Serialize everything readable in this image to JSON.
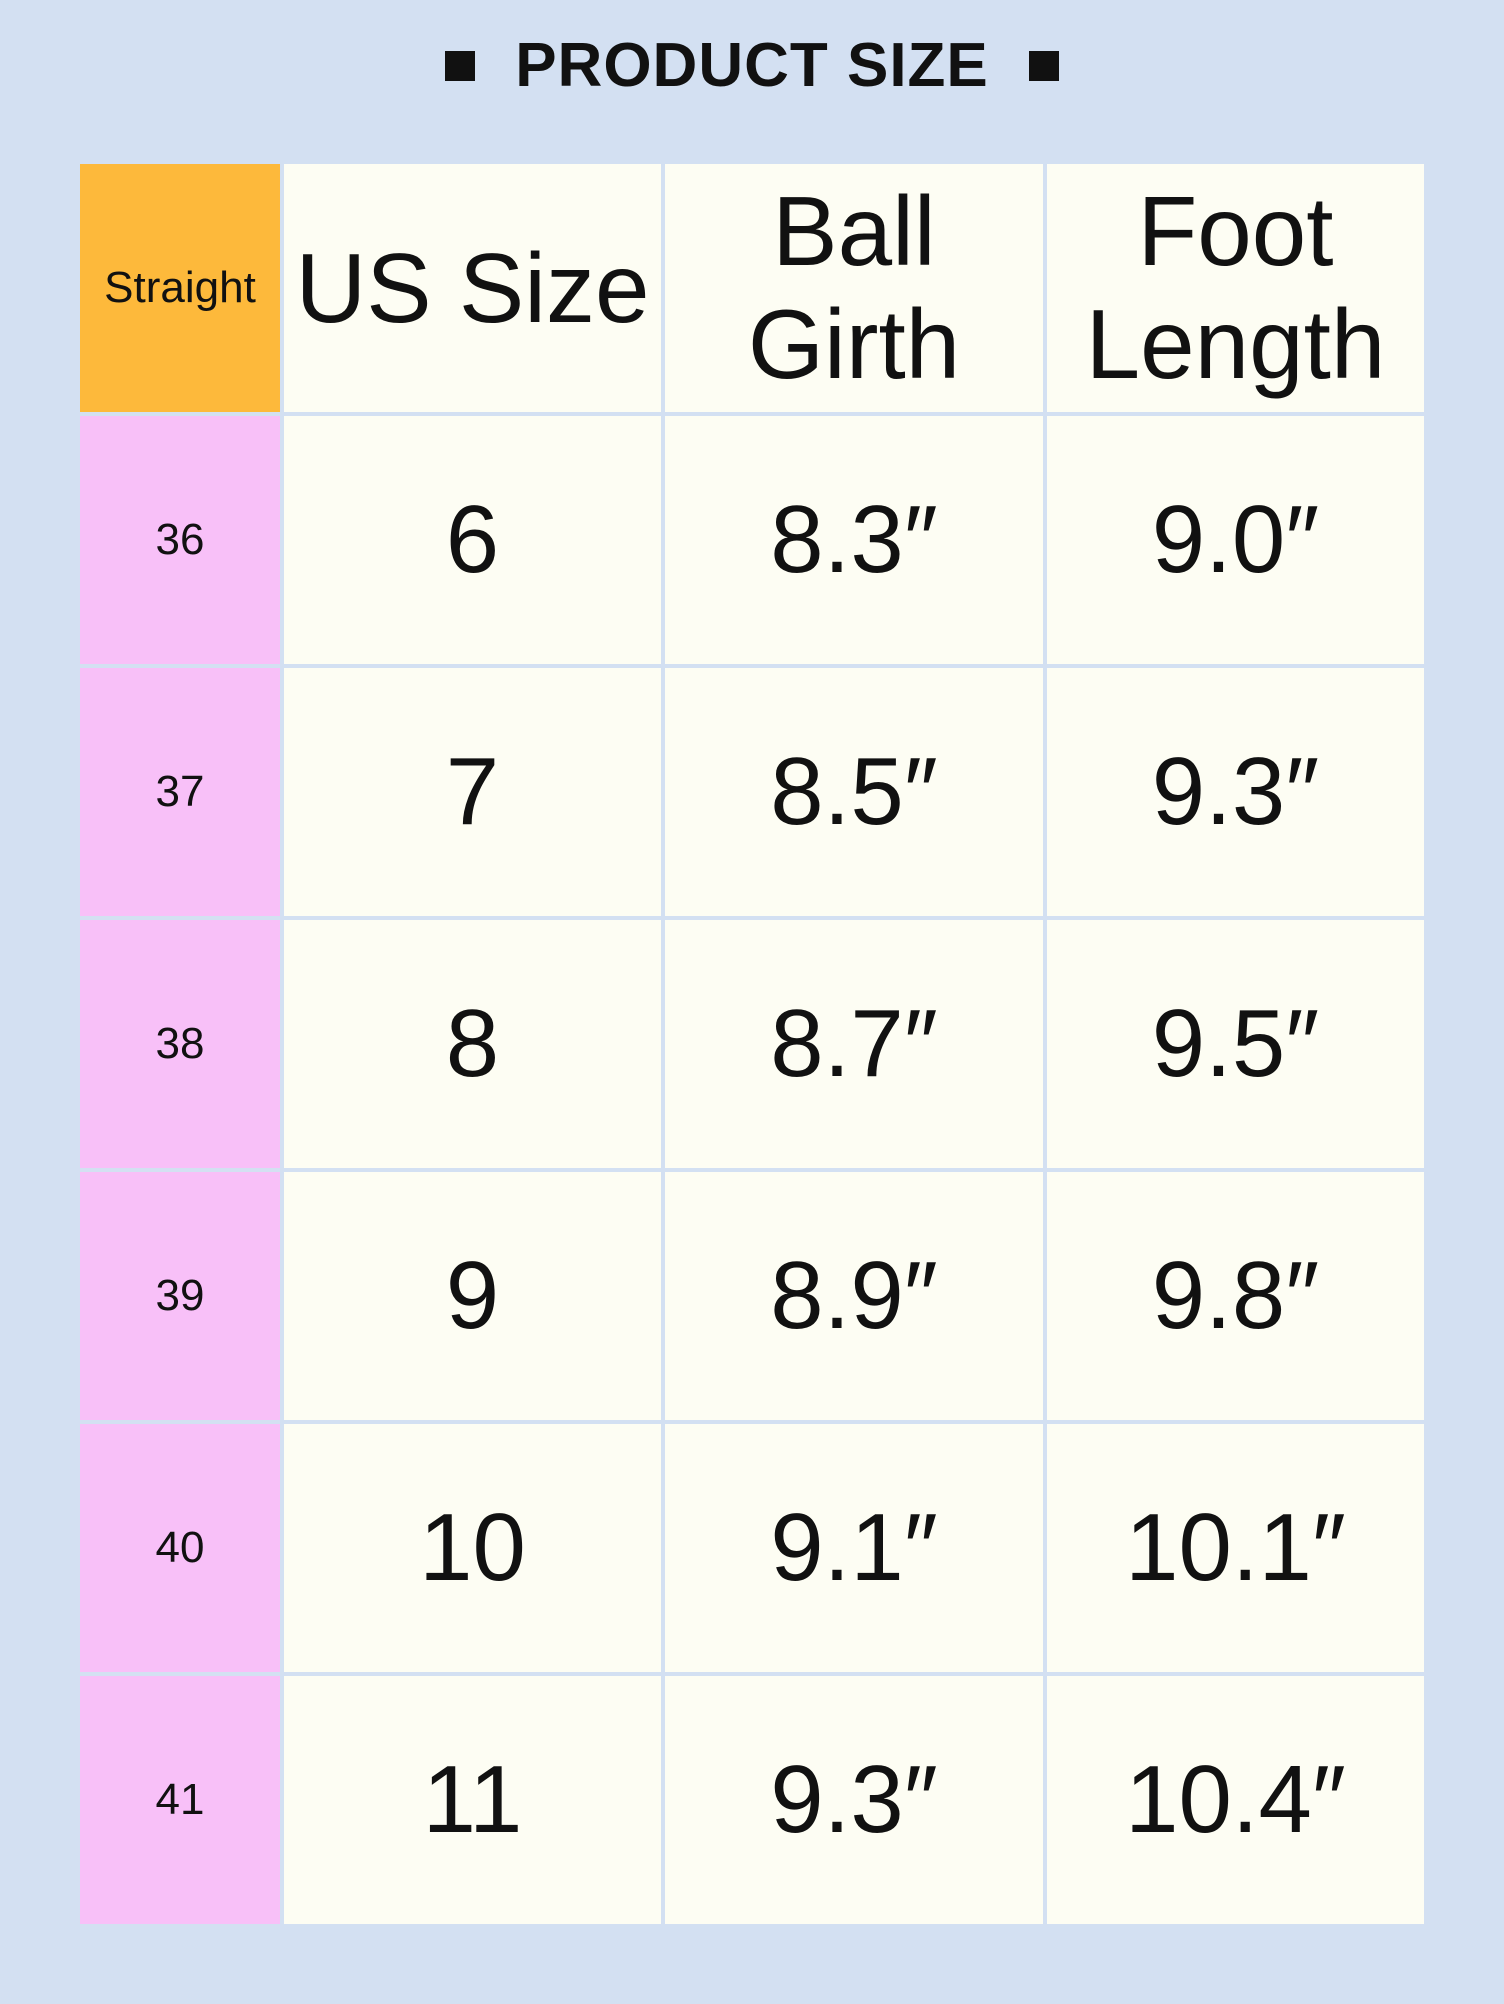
{
  "title": "PRODUCT SIZE",
  "colors": {
    "background": "#d3e0f2",
    "corner": "#fdb93b",
    "row_label": "#f8c0f8",
    "cell": "#fdfdf3"
  },
  "table": {
    "corner": "Straight",
    "headers": [
      [
        "US Size"
      ],
      [
        "Ball",
        "Girth"
      ],
      [
        "Foot",
        "Length"
      ]
    ],
    "rows": [
      {
        "label": "36",
        "us": "6",
        "ball": "8.3″",
        "foot": "9.0″"
      },
      {
        "label": "37",
        "us": "7",
        "ball": "8.5″",
        "foot": "9.3″"
      },
      {
        "label": "38",
        "us": "8",
        "ball": "8.7″",
        "foot": "9.5″"
      },
      {
        "label": "39",
        "us": "9",
        "ball": "8.9″",
        "foot": "9.8″"
      },
      {
        "label": "40",
        "us": "10",
        "ball": "9.1″",
        "foot": "10.1″"
      },
      {
        "label": "41",
        "us": "11",
        "ball": "9.3″",
        "foot": "10.4″"
      }
    ]
  }
}
